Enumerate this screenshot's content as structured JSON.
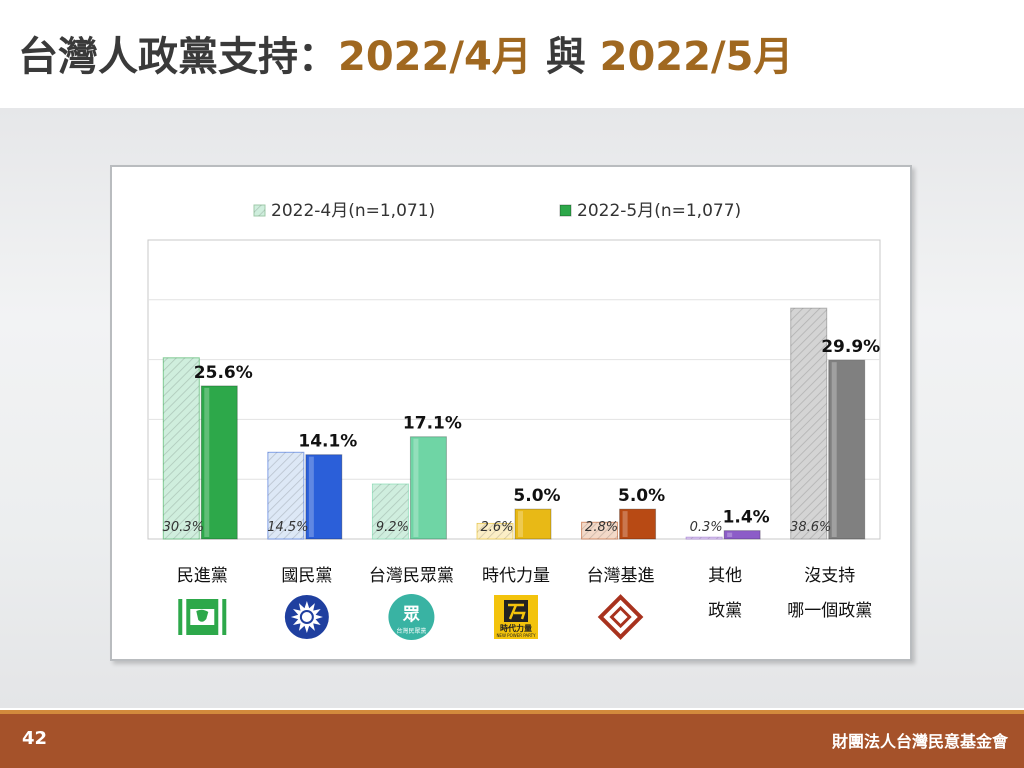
{
  "title": {
    "main": "台灣人政黨支持：",
    "date1": "2022/4月",
    "conj": " 與 ",
    "date2": "2022/5月"
  },
  "footer": {
    "page_number": "42",
    "organization": "財團法人台灣民意基金會"
  },
  "chart_data": {
    "type": "bar",
    "title": "",
    "ylim": [
      0,
      50
    ],
    "grid": true,
    "legend_position": "top",
    "categories": [
      [
        "民進黨"
      ],
      [
        "國民黨"
      ],
      [
        "台灣民眾黨"
      ],
      [
        "時代力量"
      ],
      [
        "台灣基進"
      ],
      [
        "其他",
        "政黨"
      ],
      [
        "沒支持",
        "哪一個政黨"
      ]
    ],
    "series": [
      {
        "name": "2022-4月(n=1,071)",
        "values": [
          30.3,
          14.5,
          9.2,
          2.6,
          2.8,
          0.3,
          38.6
        ],
        "labels": [
          "30.3%",
          "14.5%",
          "9.2%",
          "2.6%",
          "2.8%",
          "0.3%",
          "38.6%"
        ]
      },
      {
        "name": "2022-5月(n=1,077)",
        "values": [
          25.6,
          14.1,
          17.1,
          5.0,
          5.0,
          1.4,
          29.9
        ],
        "labels": [
          "25.6%",
          "14.1%",
          "17.1%",
          "5.0%",
          "5.0%",
          "1.4%",
          "29.9%"
        ]
      }
    ],
    "colors": {
      "april": [
        "#cfeedd",
        "#dde8f6",
        "#cfeede",
        "#fbeec6",
        "#f3d9c8",
        "#e8dcf4",
        "#d4d4d4"
      ],
      "may": [
        "#2da84a",
        "#2b5fd9",
        "#6fd5a5",
        "#e8b916",
        "#b84a14",
        "#8c5cc8",
        "#808080"
      ],
      "legend": {
        "april": "#cfeedd",
        "may": "#2da84a"
      }
    },
    "logos": [
      "dpp-logo-icon",
      "kmt-logo-icon",
      "tpp-logo-icon",
      "npp-logo-icon",
      "tsp-logo-icon"
    ],
    "logo_text": {
      "tpp": [
        "眾",
        "台灣民眾黨"
      ],
      "npp": [
        "時代力量",
        "NEW POWER PARTY"
      ]
    }
  }
}
